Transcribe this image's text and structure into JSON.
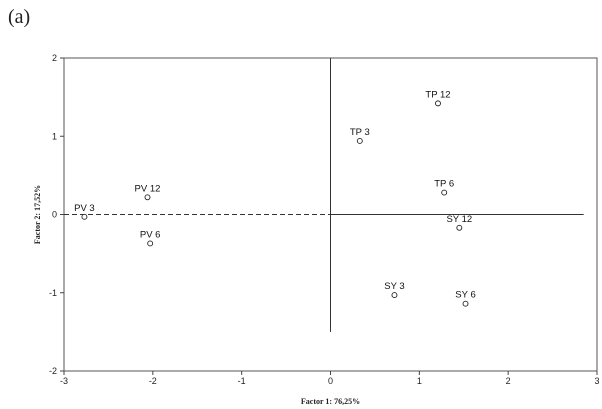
{
  "panel_label": "(a)",
  "chart_data": {
    "type": "scatter",
    "xlabel": "Factor 1: 76,25%",
    "ylabel": "Factor 2: 17,52%",
    "xlim": [
      -3,
      3
    ],
    "ylim": [
      -2,
      2
    ],
    "x_ticks": [
      -3,
      -2,
      -1,
      0,
      1,
      2,
      3
    ],
    "y_ticks": [
      -2,
      -1,
      0,
      1,
      2
    ],
    "x_tick_labels": [
      "-3",
      "-2",
      "-1",
      "0",
      "1",
      "2",
      "3"
    ],
    "y_tick_labels": [
      "-2",
      "-1",
      "0",
      "1",
      "2"
    ],
    "grid": false,
    "points": [
      {
        "label": "PV 3",
        "x": -2.77,
        "y": -0.03
      },
      {
        "label": "PV 12",
        "x": -2.06,
        "y": 0.22
      },
      {
        "label": "PV 6",
        "x": -2.03,
        "y": -0.37
      },
      {
        "label": "TP 3",
        "x": 0.33,
        "y": 0.94
      },
      {
        "label": "TP 12",
        "x": 1.21,
        "y": 1.42
      },
      {
        "label": "TP 6",
        "x": 1.28,
        "y": 0.28
      },
      {
        "label": "SY 12",
        "x": 1.45,
        "y": -0.17
      },
      {
        "label": "SY 3",
        "x": 0.72,
        "y": -1.03
      },
      {
        "label": "SY 6",
        "x": 1.52,
        "y": -1.14
      }
    ]
  }
}
